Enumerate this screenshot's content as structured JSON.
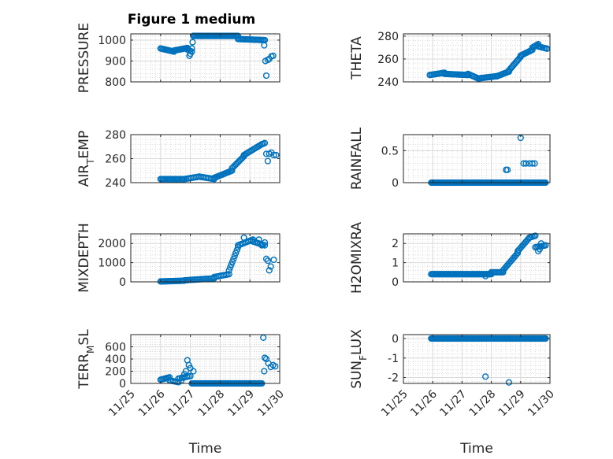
{
  "figure": {
    "title": "Figure 1 medium"
  },
  "colors": {
    "marker": "#0072BD",
    "grid": "#c8c8c8",
    "axis": "#262626"
  },
  "chart_data": [
    {
      "type": "scatter",
      "ylabel": "PRESSURE",
      "ylabel_sub": "",
      "ylabel_tail": "",
      "ylim": [
        800,
        1030
      ],
      "yticks": [
        800,
        900,
        1000
      ],
      "show_xticks": false,
      "xlabel": "",
      "segments": [
        {
          "x0": 26.0,
          "x1": 26.45,
          "y0": 960,
          "y1": 945,
          "n": 12
        },
        {
          "x0": 26.45,
          "x1": 26.9,
          "y0": 950,
          "y1": 962,
          "n": 14
        },
        {
          "x0": 26.9,
          "x1": 27.05,
          "y0": 955,
          "y1": 945,
          "n": 4
        },
        {
          "x0": 27.05,
          "x1": 27.1,
          "y0": 960,
          "y1": 1020,
          "n": 3
        },
        {
          "x0": 27.1,
          "x1": 28.6,
          "y0": 1020,
          "y1": 1020,
          "n": 40
        },
        {
          "x0": 28.6,
          "x1": 29.5,
          "y0": 1005,
          "y1": 1000,
          "n": 22
        }
      ],
      "points": [
        [
          26.97,
          925
        ],
        [
          27.0,
          935
        ],
        [
          29.48,
          975
        ],
        [
          29.52,
          900
        ],
        [
          29.55,
          830
        ],
        [
          29.6,
          905
        ],
        [
          29.65,
          910
        ],
        [
          29.72,
          922
        ],
        [
          29.78,
          925
        ]
      ]
    },
    {
      "type": "scatter",
      "ylabel": "THETA",
      "ylabel_sub": "",
      "ylabel_tail": "",
      "ylim": [
        240,
        282
      ],
      "yticks": [
        240,
        260,
        280
      ],
      "show_xticks": false,
      "xlabel": "",
      "segments": [
        {
          "x0": 25.9,
          "x1": 26.4,
          "y0": 246,
          "y1": 248,
          "n": 12
        },
        {
          "x0": 26.4,
          "x1": 27.2,
          "y0": 247,
          "y1": 246,
          "n": 20
        },
        {
          "x0": 27.2,
          "x1": 27.55,
          "y0": 247,
          "y1": 243,
          "n": 8
        },
        {
          "x0": 27.55,
          "x1": 28.2,
          "y0": 243,
          "y1": 245,
          "n": 15
        },
        {
          "x0": 28.2,
          "x1": 28.6,
          "y0": 245,
          "y1": 249,
          "n": 10
        },
        {
          "x0": 28.6,
          "x1": 29.0,
          "y0": 250,
          "y1": 262,
          "n": 12
        },
        {
          "x0": 29.0,
          "x1": 29.4,
          "y0": 263,
          "y1": 268,
          "n": 10
        },
        {
          "x0": 29.4,
          "x1": 29.6,
          "y0": 270,
          "y1": 273,
          "n": 6
        },
        {
          "x0": 29.6,
          "x1": 29.9,
          "y0": 271,
          "y1": 269,
          "n": 7
        }
      ],
      "points": []
    },
    {
      "type": "scatter",
      "ylabel": "AIR",
      "ylabel_sub": "T",
      "ylabel_tail": "EMP",
      "ylim": [
        240,
        280
      ],
      "yticks": [
        240,
        260,
        280
      ],
      "show_xticks": false,
      "xlabel": "",
      "segments": [
        {
          "x0": 26.0,
          "x1": 26.8,
          "y0": 243,
          "y1": 243,
          "n": 20
        },
        {
          "x0": 26.8,
          "x1": 27.3,
          "y0": 243,
          "y1": 245,
          "n": 10
        },
        {
          "x0": 27.3,
          "x1": 27.8,
          "y0": 245,
          "y1": 243,
          "n": 10
        },
        {
          "x0": 27.8,
          "x1": 28.4,
          "y0": 244,
          "y1": 250,
          "n": 14
        },
        {
          "x0": 28.4,
          "x1": 28.8,
          "y0": 252,
          "y1": 262,
          "n": 10
        },
        {
          "x0": 28.8,
          "x1": 29.4,
          "y0": 263,
          "y1": 272,
          "n": 14
        },
        {
          "x0": 29.4,
          "x1": 29.5,
          "y0": 272,
          "y1": 273,
          "n": 3
        }
      ],
      "points": [
        [
          29.55,
          264
        ],
        [
          29.6,
          258
        ],
        [
          29.65,
          264
        ],
        [
          29.72,
          265
        ],
        [
          29.8,
          263
        ],
        [
          29.88,
          263
        ]
      ]
    },
    {
      "type": "scatter",
      "ylabel": "RAINFALL",
      "ylabel_sub": "",
      "ylabel_tail": "",
      "ylim": [
        0,
        0.75
      ],
      "yticks": [
        0,
        0.5
      ],
      "show_xticks": false,
      "xlabel": "",
      "segments": [
        {
          "x0": 25.95,
          "x1": 29.85,
          "y0": 0,
          "y1": 0,
          "n": 120
        }
      ],
      "points": [
        [
          28.5,
          0.2
        ],
        [
          28.55,
          0.2
        ],
        [
          29.0,
          0.7
        ],
        [
          29.1,
          0.3
        ],
        [
          29.18,
          0.3
        ],
        [
          29.3,
          0.3
        ],
        [
          29.4,
          0.3
        ],
        [
          29.48,
          0.3
        ],
        [
          29.15,
          0
        ],
        [
          29.25,
          0
        ]
      ]
    },
    {
      "type": "scatter",
      "ylabel": "MIXDEPTH",
      "ylabel_sub": "",
      "ylabel_tail": "",
      "ylim": [
        0,
        2500
      ],
      "yticks": [
        0,
        1000,
        2000
      ],
      "show_xticks": false,
      "xlabel": "",
      "segments": [
        {
          "x0": 26.0,
          "x1": 26.8,
          "y0": 20,
          "y1": 60,
          "n": 20
        },
        {
          "x0": 26.8,
          "x1": 27.8,
          "y0": 80,
          "y1": 180,
          "n": 20
        },
        {
          "x0": 27.8,
          "x1": 28.3,
          "y0": 250,
          "y1": 400,
          "n": 10
        },
        {
          "x0": 28.3,
          "x1": 28.6,
          "y0": 600,
          "y1": 1800,
          "n": 9
        },
        {
          "x0": 28.6,
          "x1": 29.1,
          "y0": 1900,
          "y1": 2200,
          "n": 10
        },
        {
          "x0": 29.1,
          "x1": 29.5,
          "y0": 2100,
          "y1": 1900,
          "n": 8
        }
      ],
      "points": [
        [
          28.8,
          2300
        ],
        [
          29.1,
          2200
        ],
        [
          29.3,
          2200
        ],
        [
          29.5,
          2050
        ],
        [
          29.55,
          1200
        ],
        [
          29.6,
          1100
        ],
        [
          29.65,
          600
        ],
        [
          29.7,
          800
        ],
        [
          29.8,
          1150
        ],
        [
          29.4,
          1900
        ]
      ]
    },
    {
      "type": "scatter",
      "ylabel": "H2OMIXRA",
      "ylabel_sub": "",
      "ylabel_tail": "",
      "ylim": [
        0,
        2.5
      ],
      "yticks": [
        0,
        1,
        2
      ],
      "show_xticks": false,
      "xlabel": "",
      "segments": [
        {
          "x0": 25.95,
          "x1": 28.0,
          "y0": 0.4,
          "y1": 0.4,
          "n": 60
        },
        {
          "x0": 28.0,
          "x1": 28.4,
          "y0": 0.5,
          "y1": 0.5,
          "n": 10
        },
        {
          "x0": 28.4,
          "x1": 28.9,
          "y0": 0.6,
          "y1": 1.5,
          "n": 12
        },
        {
          "x0": 28.9,
          "x1": 29.3,
          "y0": 1.6,
          "y1": 2.3,
          "n": 10
        },
        {
          "x0": 29.3,
          "x1": 29.5,
          "y0": 2.3,
          "y1": 2.4,
          "n": 5
        },
        {
          "x0": 29.5,
          "x1": 29.85,
          "y0": 1.8,
          "y1": 1.9,
          "n": 8
        }
      ],
      "points": [
        [
          27.8,
          0.3
        ],
        [
          29.6,
          1.6
        ],
        [
          29.65,
          1.7
        ],
        [
          29.7,
          2.0
        ]
      ]
    },
    {
      "type": "scatter",
      "ylabel": "TERR",
      "ylabel_sub": "M",
      "ylabel_tail": "SL",
      "ylim": [
        0,
        800
      ],
      "yticks": [
        0,
        200,
        400,
        600
      ],
      "show_xticks": true,
      "xlabel": "Time",
      "segments": [
        {
          "x0": 26.0,
          "x1": 26.3,
          "y0": 60,
          "y1": 100,
          "n": 8
        },
        {
          "x0": 26.3,
          "x1": 26.6,
          "y0": 50,
          "y1": 20,
          "n": 6
        },
        {
          "x0": 26.6,
          "x1": 27.0,
          "y0": 80,
          "y1": 120,
          "n": 8
        },
        {
          "x0": 27.05,
          "x1": 29.4,
          "y0": 0,
          "y1": 0,
          "n": 70
        }
      ],
      "points": [
        [
          26.9,
          380
        ],
        [
          26.95,
          300
        ],
        [
          27.0,
          250
        ],
        [
          26.85,
          200
        ],
        [
          27.1,
          200
        ],
        [
          26.7,
          50
        ],
        [
          26.8,
          150
        ],
        [
          29.45,
          750
        ],
        [
          29.48,
          200
        ],
        [
          29.5,
          420
        ],
        [
          29.55,
          400
        ],
        [
          29.62,
          330
        ],
        [
          29.7,
          270
        ],
        [
          29.78,
          300
        ],
        [
          29.85,
          280
        ]
      ]
    },
    {
      "type": "scatter",
      "ylabel": "SUN",
      "ylabel_sub": "F",
      "ylabel_tail": "LUX",
      "ylim": [
        -2.3,
        0.2
      ],
      "yticks": [
        -2,
        -1,
        0
      ],
      "show_xticks": true,
      "xlabel": "Time",
      "segments": [
        {
          "x0": 25.95,
          "x1": 29.85,
          "y0": 0,
          "y1": 0,
          "n": 120
        }
      ],
      "points": [
        [
          27.8,
          -1.95
        ],
        [
          28.6,
          -2.25
        ]
      ]
    }
  ],
  "xaxis": {
    "xlim": [
      25,
      30
    ],
    "ticks": [
      25,
      26,
      27,
      28,
      29,
      30
    ],
    "tick_labels": [
      "11/25",
      "11/26",
      "11/27",
      "11/28",
      "11/29",
      "11/30"
    ]
  }
}
